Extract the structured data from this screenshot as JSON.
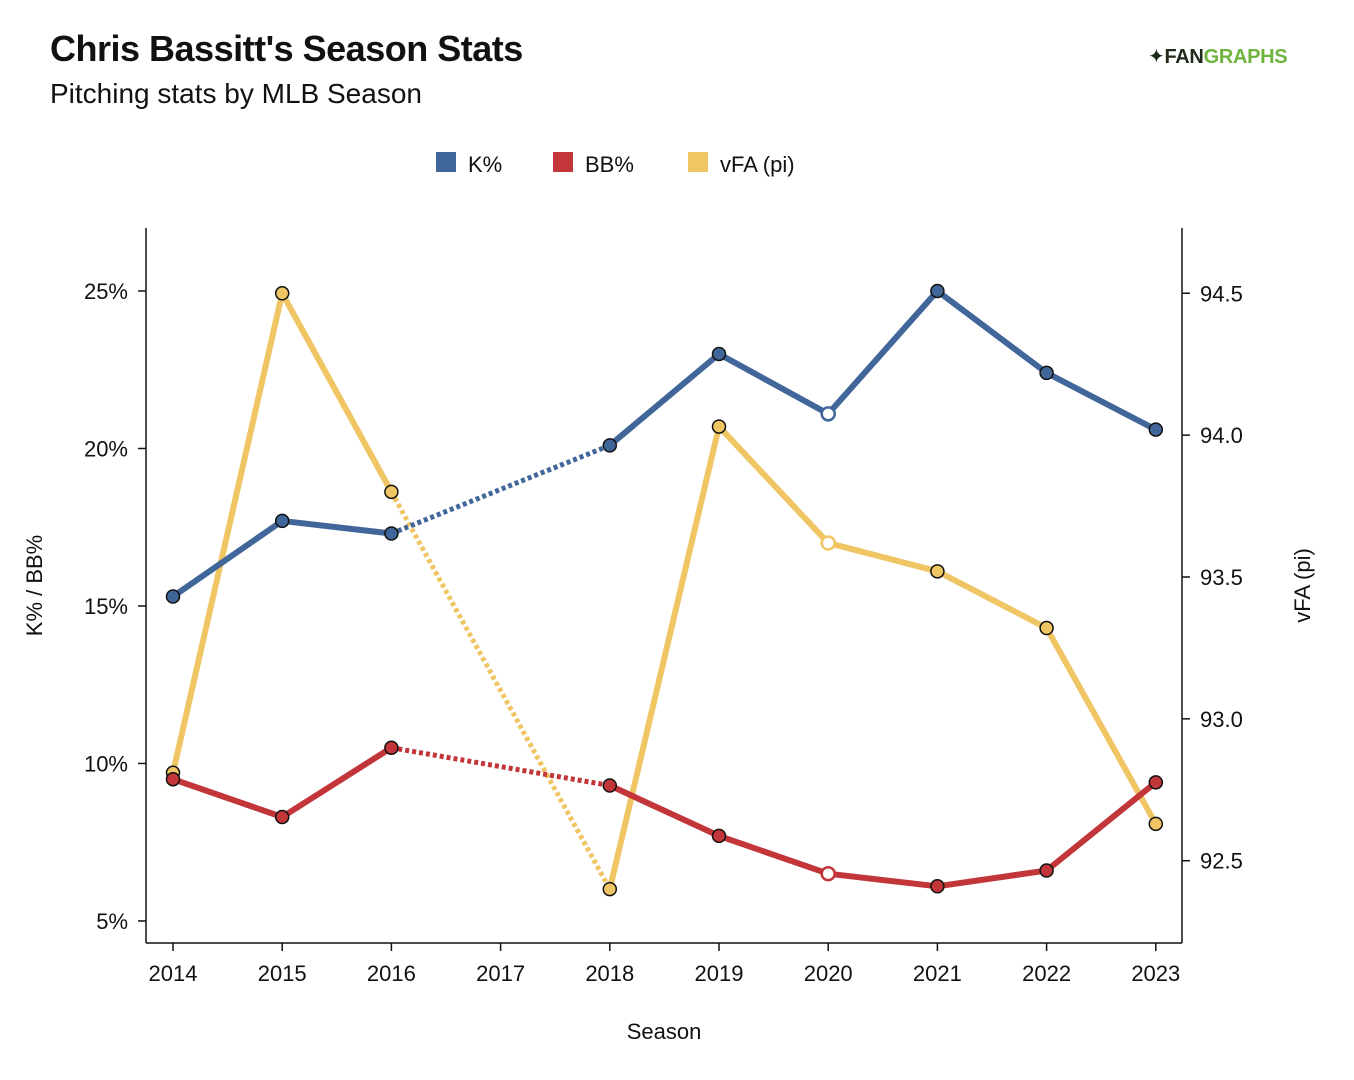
{
  "header": {
    "title": "Chris Bassitt's Season Stats",
    "subtitle": "Pitching stats by MLB Season",
    "logo_text_1": "FAN",
    "logo_text_2": "GRAPHS"
  },
  "colors": {
    "k_pct": "#41679a",
    "bb_pct": "#c2363a",
    "vfa": "#f0c564",
    "fangraphs_green": "#6fb43f"
  },
  "chart_data": {
    "type": "line",
    "title": "Chris Bassitt's Season Stats",
    "subtitle": "Pitching stats by MLB Season",
    "xlabel": "Season",
    "ylabel_left": "K% / BB%",
    "ylabel_right": "vFA (pi)",
    "x": [
      2014,
      2015,
      2016,
      2017,
      2018,
      2019,
      2020,
      2021,
      2022,
      2023
    ],
    "x_ticks": [
      "2014",
      "2015",
      "2016",
      "2017",
      "2018",
      "2019",
      "2020",
      "2021",
      "2022",
      "2023"
    ],
    "ylim_left": [
      4.3,
      27
    ],
    "yticks_left": [
      5,
      10,
      15,
      20,
      25
    ],
    "ytick_labels_left": [
      "5%",
      "10%",
      "15%",
      "20%",
      "25%"
    ],
    "ylim_right": [
      92.21,
      94.73
    ],
    "yticks_right": [
      92.5,
      93.0,
      93.5,
      94.0,
      94.5
    ],
    "ytick_labels_right": [
      "92.5",
      "93.0",
      "93.5",
      "94.0",
      "94.5"
    ],
    "legend_position": "top-center",
    "grid": false,
    "missing_note": "No 2017 season; gaps bridged with dotted lines",
    "series": [
      {
        "name": "K%",
        "axis": "left",
        "color": "#41679a",
        "points": [
          {
            "x": 2014,
            "y": 15.3
          },
          {
            "x": 2015,
            "y": 17.7
          },
          {
            "x": 2016,
            "y": 17.3
          },
          {
            "x": 2018,
            "y": 20.1
          },
          {
            "x": 2019,
            "y": 23.0
          },
          {
            "x": 2020,
            "y": 21.1,
            "hollow": true
          },
          {
            "x": 2021,
            "y": 25.0
          },
          {
            "x": 2022,
            "y": 22.4
          },
          {
            "x": 2023,
            "y": 20.6
          }
        ]
      },
      {
        "name": "BB%",
        "axis": "left",
        "color": "#c2363a",
        "points": [
          {
            "x": 2014,
            "y": 9.5
          },
          {
            "x": 2015,
            "y": 8.3
          },
          {
            "x": 2016,
            "y": 10.5
          },
          {
            "x": 2018,
            "y": 9.3
          },
          {
            "x": 2019,
            "y": 7.7
          },
          {
            "x": 2020,
            "y": 6.5,
            "hollow": true
          },
          {
            "x": 2021,
            "y": 6.1
          },
          {
            "x": 2022,
            "y": 6.6
          },
          {
            "x": 2023,
            "y": 9.4
          }
        ]
      },
      {
        "name": "vFA (pi)",
        "axis": "right",
        "color": "#f0c564",
        "points": [
          {
            "x": 2014,
            "y": 92.81
          },
          {
            "x": 2015,
            "y": 94.5
          },
          {
            "x": 2016,
            "y": 93.8
          },
          {
            "x": 2018,
            "y": 92.4
          },
          {
            "x": 2019,
            "y": 94.03
          },
          {
            "x": 2020,
            "y": 93.62,
            "hollow": true
          },
          {
            "x": 2021,
            "y": 93.52
          },
          {
            "x": 2022,
            "y": 93.32
          },
          {
            "x": 2023,
            "y": 92.63
          }
        ]
      }
    ]
  }
}
